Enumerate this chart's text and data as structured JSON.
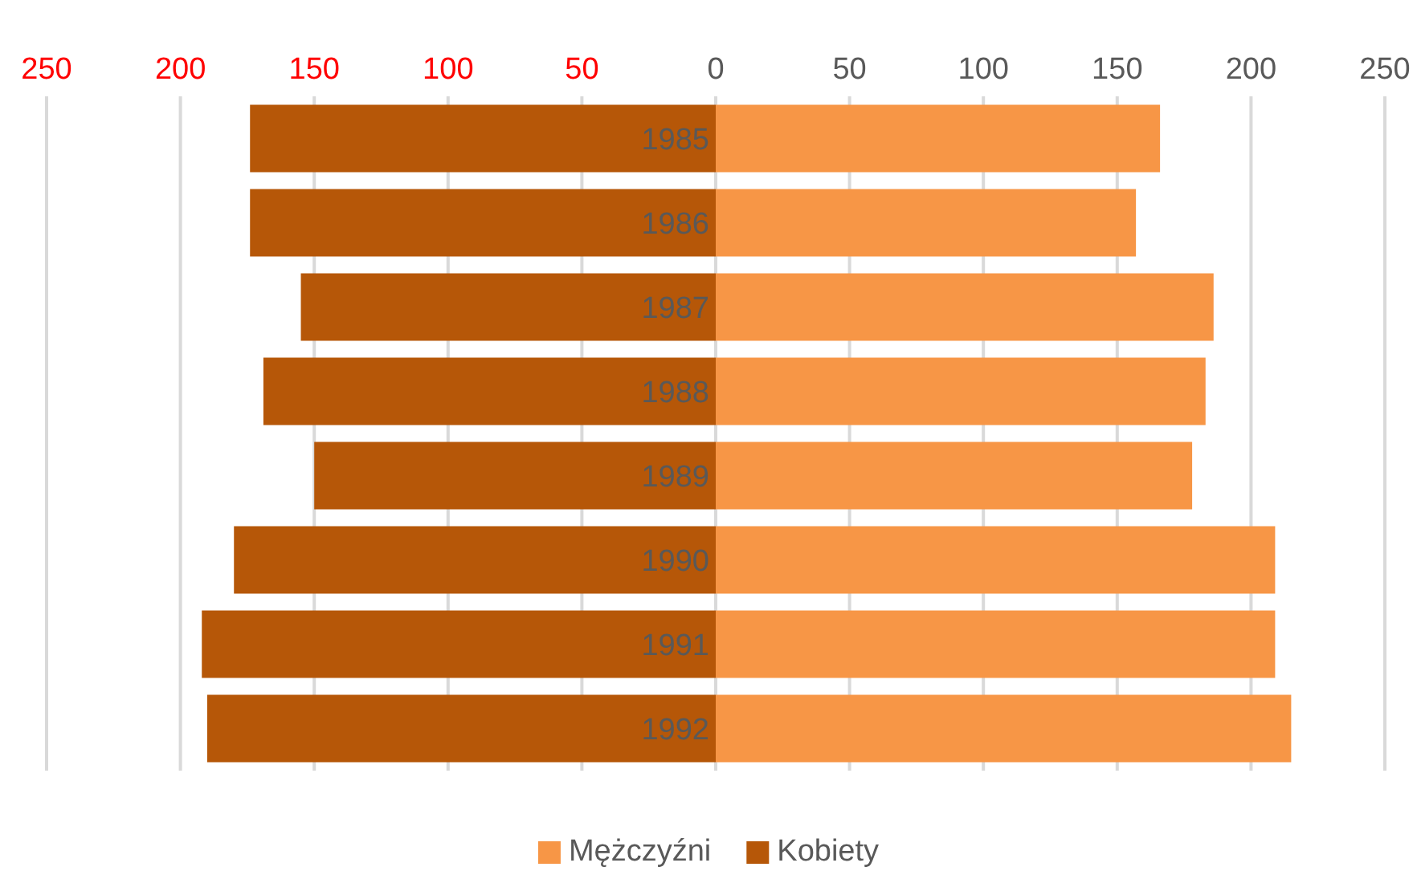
{
  "chart_data": {
    "type": "bar",
    "orientation": "horizontal",
    "stacked": true,
    "categories": [
      "1985",
      "1986",
      "1987",
      "1988",
      "1989",
      "1990",
      "1991",
      "1992"
    ],
    "series": [
      {
        "name": "Mężczyźni",
        "color": "#f79646",
        "values": [
          166,
          157,
          186,
          183,
          178,
          209,
          209,
          215
        ]
      },
      {
        "name": "Kobiety",
        "color": "#b65708",
        "values": [
          -174,
          -174,
          -155,
          -169,
          -150,
          -180,
          -192,
          -190
        ]
      }
    ],
    "xlim": [
      -250,
      250
    ],
    "xticks": [
      {
        "value": -250,
        "label": "250"
      },
      {
        "value": -200,
        "label": "200"
      },
      {
        "value": -150,
        "label": "150"
      },
      {
        "value": -100,
        "label": "100"
      },
      {
        "value": -50,
        "label": "50"
      },
      0,
      50,
      100,
      150,
      200,
      250
    ],
    "grid": "x",
    "legend": "bottom"
  }
}
